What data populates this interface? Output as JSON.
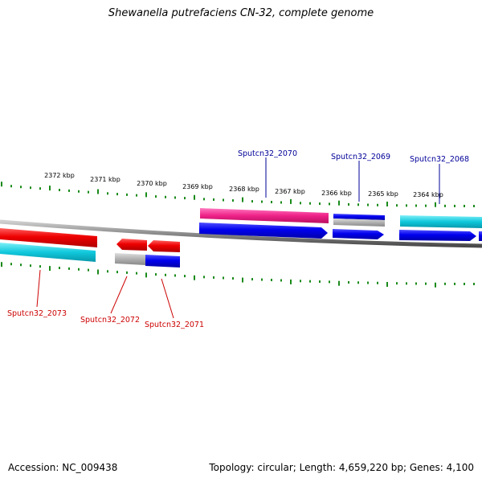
{
  "title": "Shewanella putrefaciens CN-32, complete genome",
  "footer": {
    "accession": "Accession: NC_009438",
    "summary": "Topology: circular; Length: 4,659,220 bp; Genes: 4,100"
  },
  "ruler": {
    "labels": [
      "2372 kbp",
      "2371 kbp",
      "2370 kbp",
      "2369 kbp",
      "2368 kbp",
      "2367 kbp",
      "2366 kbp",
      "2365 kbp",
      "2364 kbp"
    ],
    "tick_color": "#1a8a1a"
  },
  "genes": [
    {
      "id": "Sputcn32_2073",
      "color": "#cc0000"
    },
    {
      "id": "Sputcn32_2072",
      "color": "#cc0000"
    },
    {
      "id": "Sputcn32_2071",
      "color": "#cc0000"
    },
    {
      "id": "Sputcn32_2070",
      "color": "#000099"
    },
    {
      "id": "Sputcn32_2069",
      "color": "#000099"
    },
    {
      "id": "Sputcn32_2068",
      "color": "#000099"
    }
  ]
}
